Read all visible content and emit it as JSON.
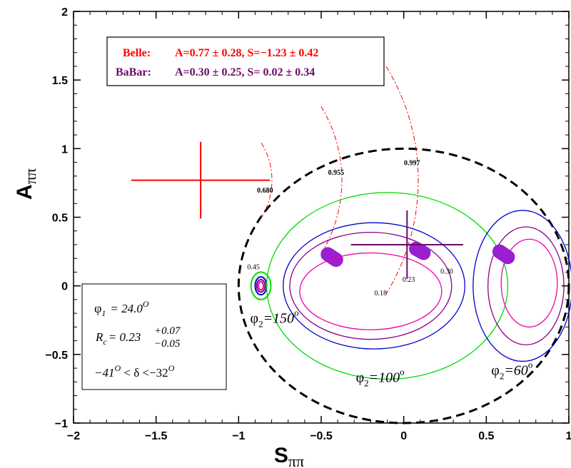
{
  "chart_data": {
    "type": "scatter",
    "xlabel_main": "S",
    "xlabel_sub": "ππ",
    "ylabel_main": "A",
    "ylabel_sub": "ππ",
    "xlim": [
      -2,
      1
    ],
    "ylim": [
      -1,
      2
    ],
    "x_ticks": [
      {
        "value": -2,
        "label": "−2"
      },
      {
        "value": -1.5,
        "label": "−1.5"
      },
      {
        "value": -1,
        "label": "−1"
      },
      {
        "value": -0.5,
        "label": "−0.5"
      },
      {
        "value": 0,
        "label": "0"
      },
      {
        "value": 0.5,
        "label": "0.5"
      },
      {
        "value": 1,
        "label": "1"
      }
    ],
    "y_ticks": [
      {
        "value": -1,
        "label": "−1"
      },
      {
        "value": -0.5,
        "label": "−0.5"
      },
      {
        "value": 0,
        "label": "0"
      },
      {
        "value": 0.5,
        "label": "0.5"
      },
      {
        "value": 1,
        "label": "1"
      },
      {
        "value": 1.5,
        "label": "1.5"
      },
      {
        "value": 2,
        "label": "2"
      }
    ],
    "legend": {
      "belle_label": "Belle:",
      "belle_text": "A=0.77 ± 0.28,   S=−1.23 ± 0.42",
      "babar_label": "BaBar:",
      "babar_text": "A=0.30 ± 0.25,   S=  0.02 ± 0.34",
      "belle_color": "#ff0000",
      "babar_color": "#6a0a6a"
    },
    "measurements": [
      {
        "name": "Belle",
        "S": -1.23,
        "S_err": 0.42,
        "A": 0.77,
        "A_err": 0.28,
        "color": "#ff0000"
      },
      {
        "name": "BaBar",
        "S": 0.02,
        "S_err": 0.34,
        "A": 0.3,
        "A_err": 0.25,
        "color": "#6a0a6a"
      }
    ],
    "physical_boundary": {
      "center": [
        0,
        0
      ],
      "radius": 1,
      "style": "dashed",
      "color": "#000000"
    },
    "confidence_arcs": [
      {
        "label": "0.680",
        "label_pos": [
          -0.84,
          0.68
        ],
        "color": "#ff0000"
      },
      {
        "label": "0.955",
        "label_pos": [
          -0.41,
          0.81
        ],
        "color": "#ff0000"
      },
      {
        "label": "0.997",
        "label_pos": [
          0.05,
          0.88
        ],
        "color": "#ff0000"
      }
    ],
    "contour_groups": [
      {
        "phi2_label": "150",
        "label_pos": [
          -0.93,
          -0.27
        ],
        "ellipses": [
          {
            "cx": -0.865,
            "cy": 0.0,
            "rx": 0.06,
            "ry": 0.1,
            "color": "#00dd00"
          },
          {
            "cx": -0.865,
            "cy": 0.0,
            "rx": 0.035,
            "ry": 0.065,
            "color": "#0000cc"
          },
          {
            "cx": -0.865,
            "cy": 0.0,
            "rx": 0.025,
            "ry": 0.045,
            "color": "#880088"
          },
          {
            "cx": -0.865,
            "cy": 0.0,
            "rx": 0.015,
            "ry": 0.03,
            "color": "#ee00aa"
          }
        ],
        "band": {
          "from": [
            -0.46,
            0.23
          ],
          "to": [
            -0.41,
            0.19
          ]
        }
      },
      {
        "phi2_label": "100",
        "label_pos": [
          -0.29,
          -0.7
        ],
        "ellipses": [
          {
            "cx": -0.1,
            "cy": 0.0,
            "rx": 0.73,
            "ry": 0.68,
            "color": "#00dd00"
          },
          {
            "cx": -0.18,
            "cy": 0.0,
            "rx": 0.55,
            "ry": 0.46,
            "color": "#0000cc"
          },
          {
            "cx": -0.2,
            "cy": 0.0,
            "rx": 0.49,
            "ry": 0.39,
            "color": "#880088"
          },
          {
            "cx": -0.2,
            "cy": -0.04,
            "rx": 0.43,
            "ry": 0.28,
            "color": "#ee00aa"
          }
        ],
        "band": {
          "from": [
            0.075,
            0.27
          ],
          "to": [
            0.12,
            0.24
          ]
        }
      },
      {
        "phi2_label": "60",
        "label_pos": [
          0.53,
          -0.65
        ],
        "ellipses": [
          {
            "cx": 0.72,
            "cy": 0.0,
            "rx": 0.3,
            "ry": 0.55,
            "color": "#0000cc"
          },
          {
            "cx": 0.74,
            "cy": 0.0,
            "rx": 0.23,
            "ry": 0.43,
            "color": "#880088"
          },
          {
            "cx": 0.76,
            "cy": 0.02,
            "rx": 0.17,
            "ry": 0.32,
            "color": "#ee00aa"
          }
        ],
        "band": {
          "from": [
            0.58,
            0.25
          ],
          "to": [
            0.63,
            0.21
          ]
        }
      }
    ],
    "contour_value_labels": [
      {
        "text": "0.45",
        "pos": [
          -0.91,
          0.12
        ]
      },
      {
        "text": "0.23",
        "pos": [
          0.03,
          0.03
        ]
      },
      {
        "text": "0.30",
        "pos": [
          0.26,
          0.09
        ]
      },
      {
        "text": "0.18",
        "pos": [
          -0.14,
          -0.07
        ]
      }
    ],
    "phi2_prefix": "φ",
    "phi2_subscript": "2",
    "phi2_equals": "=",
    "degree_mark": "o",
    "params_box": {
      "phi1_symbol": "φ",
      "phi1_sub": "1",
      "phi1_value": "= 24.0",
      "phi1_sup": "O",
      "rc_symbol": "R",
      "rc_sub": "c",
      "rc_value": "= 0.23",
      "rc_sup": "+0.07",
      "rc_subscr": "−0.05",
      "delta_left": "−41",
      "delta_left_sup": "O",
      "delta_mid": " < δ <−32",
      "delta_right_sup": "O"
    }
  }
}
